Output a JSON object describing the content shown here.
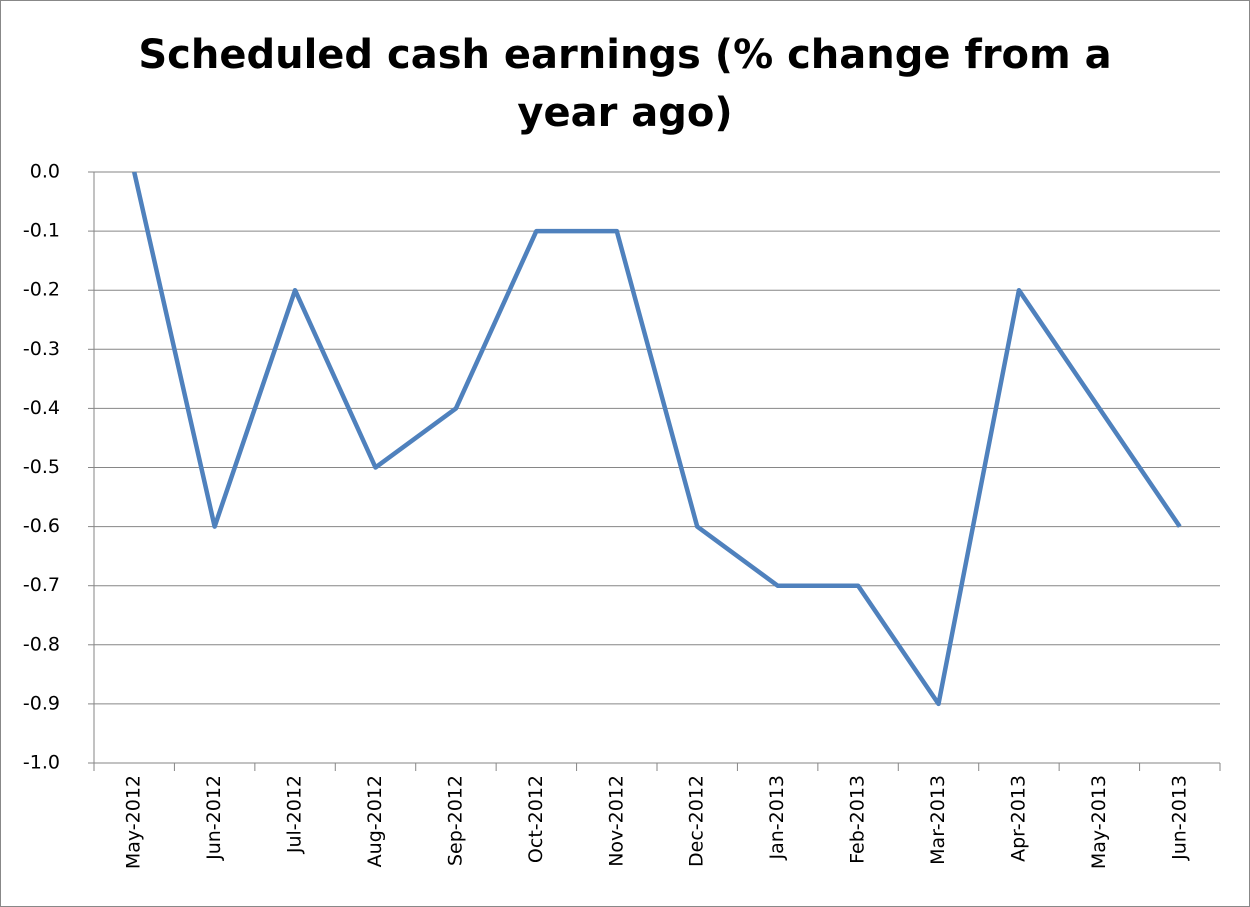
{
  "chart_data": {
    "type": "line",
    "title": "Scheduled cash earnings (% change from a year ago)",
    "categories": [
      "May-2012",
      "Jun-2012",
      "Jul-2012",
      "Aug-2012",
      "Sep-2012",
      "Oct-2012",
      "Nov-2012",
      "Dec-2012",
      "Jan-2013",
      "Feb-2013",
      "Mar-2013",
      "Apr-2013",
      "May-2013",
      "Jun-2013"
    ],
    "series": [
      {
        "name": "Scheduled cash earnings",
        "color": "#4f81bd",
        "values": [
          0,
          -0.6,
          -0.2,
          -0.5,
          -0.4,
          -0.1,
          -0.1,
          -0.6,
          -0.7,
          -0.7,
          -0.9,
          -0.2,
          -0.4,
          -0.6
        ]
      }
    ],
    "ylim": [
      -1,
      0
    ],
    "yticks": [
      {
        "value": 0,
        "label": "0.0"
      },
      -0.1,
      -0.2,
      -0.3,
      -0.4,
      -0.5,
      -0.6,
      -0.7,
      -0.8,
      -0.9,
      {
        "value": -1,
        "label": "-1.0"
      }
    ],
    "grid": true
  }
}
